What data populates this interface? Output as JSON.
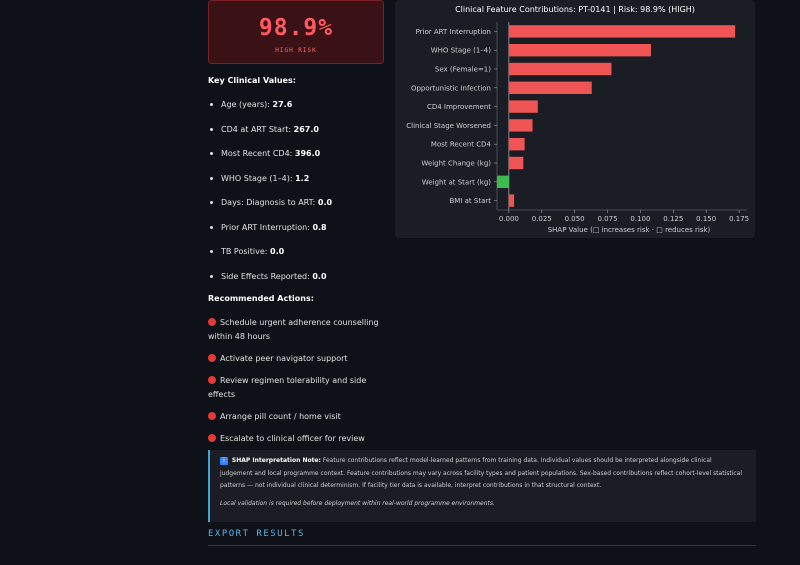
{
  "risk": {
    "value": "98.9%",
    "label": "HIGH RISK"
  },
  "key_values": {
    "title": "Key Clinical Values:",
    "items": [
      {
        "label": "Age (years):",
        "value": "27.6"
      },
      {
        "label": "CD4 at ART Start:",
        "value": "267.0"
      },
      {
        "label": "Most Recent CD4:",
        "value": "396.0"
      },
      {
        "label": "WHO Stage (1–4):",
        "value": "1.2"
      },
      {
        "label": "Days: Diagnosis to ART:",
        "value": "0.0"
      },
      {
        "label": "Prior ART Interruption:",
        "value": "0.8"
      },
      {
        "label": "TB Positive:",
        "value": "0.0"
      },
      {
        "label": "Side Effects Reported:",
        "value": "0.0"
      }
    ]
  },
  "actions": {
    "title": "Recommended Actions:",
    "items": [
      "Schedule urgent adherence counselling within 48 hours",
      "Activate peer navigator support",
      "Review regimen tolerability and side effects",
      "Arrange pill count / home visit",
      "Escalate to clinical officer for review"
    ]
  },
  "chart_data": {
    "type": "bar",
    "orientation": "horizontal",
    "title": "Clinical Feature Contributions: PT-0141 | Risk: 98.9% (HIGH)",
    "xlabel": "SHAP Value (□ increases risk · □ reduces risk)",
    "ylabel": "",
    "categories": [
      "Prior ART Interruption",
      "WHO Stage (1–4)",
      "Sex (Female=1)",
      "Opportunistic Infection",
      "CD4 Improvement",
      "Clinical Stage Worsened",
      "Most Recent CD4",
      "Weight Change (kg)",
      "Weight at Start (kg)",
      "BMI at Start"
    ],
    "values": [
      0.172,
      0.108,
      0.078,
      0.063,
      0.022,
      0.018,
      0.012,
      0.011,
      -0.009,
      0.004
    ],
    "xlim": [
      -0.009,
      0.181
    ],
    "xticks": [
      "0.000",
      "0.025",
      "0.050",
      "0.075",
      "0.100",
      "0.125",
      "0.150",
      "0.175"
    ],
    "colors": {
      "positive": "#f05454",
      "negative": "#3dbb4f"
    },
    "grid": false
  },
  "note": {
    "icon": "info-icon",
    "title": "SHAP Interpretation Note:",
    "body": "Feature contributions reflect model-learned patterns from training data. Individual values should be interpreted alongside clinical judgement and local programme context. Feature contributions may vary across facility types and patient populations. Sex-based contributions reflect cohort-level statistical patterns — not individual clinical determinism. If facility tier data is available, interpret contributions in that structural context.",
    "local": "Local validation is required before deployment within real-world programme environments."
  },
  "export": {
    "title": "EXPORT RESULTS"
  }
}
